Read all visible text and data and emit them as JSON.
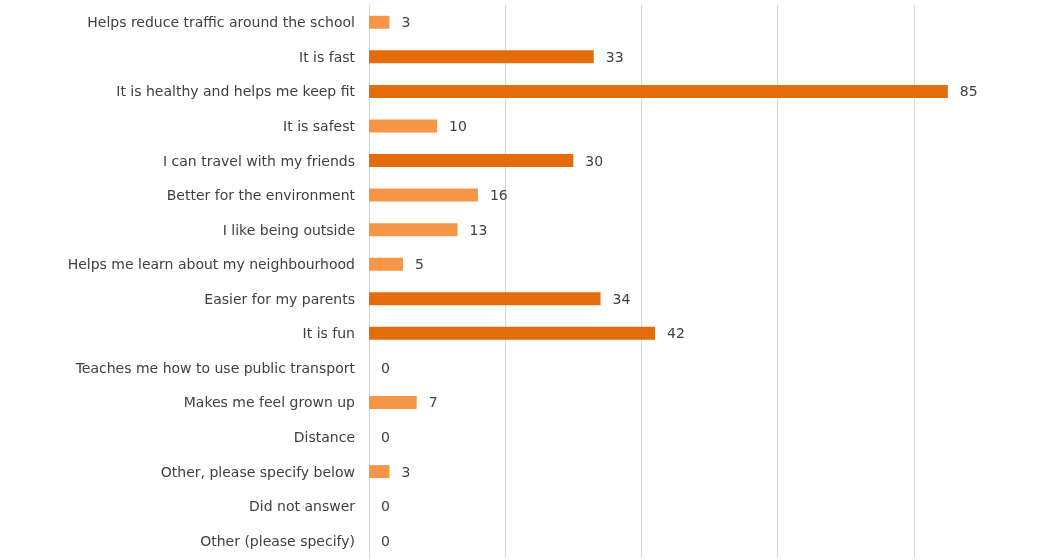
{
  "chart_data": {
    "type": "bar",
    "orientation": "horizontal",
    "categories": [
      "Helps reduce traffic around the school",
      "It is fast",
      "It is healthy and helps me keep fit",
      "It is safest",
      "I can travel with my friends",
      "Better for the environment",
      "I like being outside",
      "Helps me learn about my neighbourhood",
      "Easier for my parents",
      "It is fun",
      "Teaches me how to use public transport",
      "Makes me feel grown up",
      "Distance",
      "Other, please specify below",
      "Did not answer",
      "Other (please specify)"
    ],
    "values": [
      3,
      33,
      85,
      10,
      30,
      16,
      13,
      5,
      34,
      42,
      0,
      7,
      0,
      3,
      0,
      0
    ],
    "colors": [
      "#f79646",
      "#e46c0a",
      "#e46c0a",
      "#f79646",
      "#e46c0a",
      "#f79646",
      "#f79646",
      "#f79646",
      "#e46c0a",
      "#e46c0a",
      "#f79646",
      "#f79646",
      "#f79646",
      "#f79646",
      "#f79646",
      "#f79646"
    ],
    "tick_labels": "y",
    "grid": "x",
    "data_labels": true
  }
}
